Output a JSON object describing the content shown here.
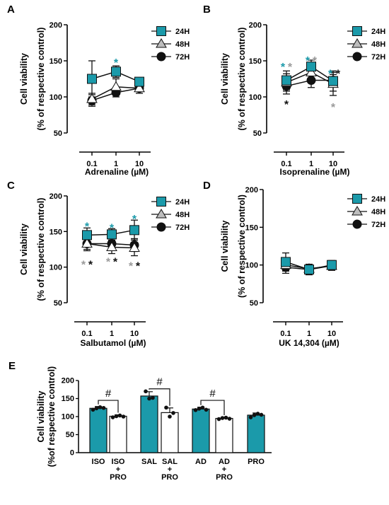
{
  "colors": {
    "teal": "#1b9aaa",
    "gray": "#bdbdbd",
    "black": "#111111",
    "white": "#ffffff",
    "starGray": "#9a9a9a"
  },
  "chart_data": [
    {
      "panel": "A",
      "type": "line",
      "ylabel": [
        "Cell viability",
        "(% of respective control)"
      ],
      "xlabel": "Adrenaline (µM)",
      "categories": [
        "0.1",
        "1",
        "10"
      ],
      "ylim": [
        50,
        200
      ],
      "yticks": [
        "50",
        "100",
        "150",
        "200"
      ],
      "series": [
        {
          "name": "24H",
          "marker": "square",
          "values": [
            125,
            135,
            121
          ],
          "err": [
            25,
            8,
            4
          ]
        },
        {
          "name": "48H",
          "marker": "triangle",
          "values": [
            97,
            114,
            112
          ],
          "err": [
            8,
            11,
            7
          ]
        },
        {
          "name": "72H",
          "marker": "circle",
          "values": [
            95,
            106,
            112
          ],
          "err": [
            8,
            6,
            4
          ]
        }
      ],
      "significance": [
        {
          "x": 1,
          "y": 150,
          "text": "*",
          "color": "teal"
        }
      ]
    },
    {
      "panel": "B",
      "type": "line",
      "ylabel": [
        "Cell viability",
        "(% of respective control)"
      ],
      "xlabel": "Isoprenaline (µM)",
      "categories": [
        "0.1",
        "1",
        "10"
      ],
      "ylim": [
        50,
        200
      ],
      "yticks": [
        "50",
        "100",
        "150",
        "200"
      ],
      "series": [
        {
          "name": "24H",
          "marker": "square",
          "values": [
            123,
            142,
            122
          ],
          "err": [
            13,
            9,
            14
          ]
        },
        {
          "name": "48H",
          "marker": "triangle",
          "values": [
            120,
            134,
            118
          ],
          "err": [
            12,
            11,
            16
          ]
        },
        {
          "name": "72H",
          "marker": "circle",
          "values": [
            115,
            123,
            123
          ],
          "err": [
            11,
            10,
            8
          ]
        }
      ],
      "significance": [
        {
          "x": 0,
          "y": 144,
          "text": "*",
          "color": "teal",
          "dx": -5
        },
        {
          "x": 0,
          "y": 144,
          "text": "*",
          "color": "gray",
          "dx": 5
        },
        {
          "x": 0,
          "y": 92,
          "text": "*",
          "color": "black"
        },
        {
          "x": 1,
          "y": 153,
          "text": "*",
          "color": "teal",
          "dx": -5
        },
        {
          "x": 1,
          "y": 153,
          "text": "*",
          "color": "gray",
          "dx": 5
        },
        {
          "x": 2,
          "y": 135,
          "text": "*",
          "color": "teal",
          "dx": -4
        },
        {
          "x": 2,
          "y": 135,
          "text": "*",
          "color": "black",
          "dx": 7
        },
        {
          "x": 2,
          "y": 88,
          "text": "*",
          "color": "gray"
        }
      ]
    },
    {
      "panel": "C",
      "type": "line",
      "ylabel": [
        "Cell viability",
        "(% of respective control)"
      ],
      "xlabel": "Salbutamol (µM)",
      "categories": [
        "0.1",
        "1",
        "10"
      ],
      "ylim": [
        50,
        200
      ],
      "yticks": [
        "50",
        "100",
        "150",
        "200"
      ],
      "series": [
        {
          "name": "24H",
          "marker": "square",
          "values": [
            145,
            146,
            152
          ],
          "err": [
            10,
            8,
            14
          ]
        },
        {
          "name": "48H",
          "marker": "triangle",
          "values": [
            133,
            128,
            127
          ],
          "err": [
            10,
            9,
            11
          ]
        },
        {
          "name": "72H",
          "marker": "circle",
          "values": [
            133,
            133,
            131
          ],
          "err": [
            8,
            7,
            9
          ]
        }
      ],
      "significance": [
        {
          "x": 0,
          "y": 160,
          "text": "*",
          "color": "teal"
        },
        {
          "x": 1,
          "y": 158,
          "text": "*",
          "color": "teal"
        },
        {
          "x": 2,
          "y": 170,
          "text": "*",
          "color": "teal"
        },
        {
          "x": 0,
          "y": 106,
          "text": "*",
          "color": "gray",
          "dx": -5
        },
        {
          "x": 0,
          "y": 106,
          "text": "*",
          "color": "black",
          "dx": 5
        },
        {
          "x": 1,
          "y": 110,
          "text": "*",
          "color": "gray",
          "dx": -5
        },
        {
          "x": 1,
          "y": 110,
          "text": "*",
          "color": "black",
          "dx": 5
        },
        {
          "x": 2,
          "y": 104,
          "text": "*",
          "color": "gray",
          "dx": -5
        },
        {
          "x": 2,
          "y": 104,
          "text": "*",
          "color": "black",
          "dx": 5
        }
      ]
    },
    {
      "panel": "D",
      "type": "line",
      "ylabel": [
        "Cell viability",
        "(% of respective control)"
      ],
      "xlabel": "UK 14,304 (µM)",
      "categories": [
        "0.1",
        "1",
        "10"
      ],
      "ylim": [
        50,
        200
      ],
      "yticks": [
        "50",
        "100",
        "150",
        "200"
      ],
      "series": [
        {
          "name": "24H",
          "marker": "square",
          "values": [
            104,
            94,
            100
          ],
          "err": [
            12,
            7,
            6
          ]
        },
        {
          "name": "48H",
          "marker": "triangle",
          "values": [
            100,
            95,
            99
          ],
          "err": [
            8,
            6,
            6
          ]
        },
        {
          "name": "72H",
          "marker": "circle",
          "values": [
            97,
            94,
            99
          ],
          "err": [
            8,
            6,
            6
          ]
        }
      ],
      "significance": []
    },
    {
      "panel": "E",
      "type": "bar",
      "ylabel": [
        "Cell viability",
        "(%of respective control)"
      ],
      "ylim": [
        0,
        200
      ],
      "yticks": [
        "0",
        "50",
        "100",
        "150",
        "200"
      ],
      "bars": [
        {
          "label": [
            "ISO"
          ],
          "value": 123,
          "err": 5,
          "fill": "teal",
          "points": [
            119,
            123,
            126,
            124
          ]
        },
        {
          "label": [
            "ISO",
            "+",
            "PRO"
          ],
          "value": 101,
          "err": 4,
          "fill": "white",
          "points": [
            98,
            101,
            103,
            100
          ]
        },
        {
          "label": [
            "SAL"
          ],
          "value": 157,
          "err": 12,
          "fill": "teal",
          "points": [
            170,
            150,
            152
          ]
        },
        {
          "label": [
            "SAL",
            "+",
            "PRO"
          ],
          "value": 111,
          "err": 13,
          "fill": "white",
          "points": [
            125,
            100,
            110
          ]
        },
        {
          "label": [
            "AD"
          ],
          "value": 121,
          "err": 5,
          "fill": "teal",
          "points": [
            118,
            122,
            125,
            119
          ]
        },
        {
          "label": [
            "AD",
            "+",
            "PRO"
          ],
          "value": 95,
          "err": 3,
          "fill": "white",
          "points": [
            93,
            96,
            97,
            94
          ]
        },
        {
          "label": [
            "PRO"
          ],
          "value": 104,
          "err": 6,
          "fill": "teal",
          "points": [
            98,
            104,
            108,
            105
          ]
        }
      ],
      "brackets": [
        {
          "from": 0,
          "to": 1,
          "y": 145,
          "text": "#"
        },
        {
          "from": 2,
          "to": 3,
          "y": 177,
          "text": "#"
        },
        {
          "from": 4,
          "to": 5,
          "y": 145,
          "text": "#"
        }
      ]
    }
  ]
}
